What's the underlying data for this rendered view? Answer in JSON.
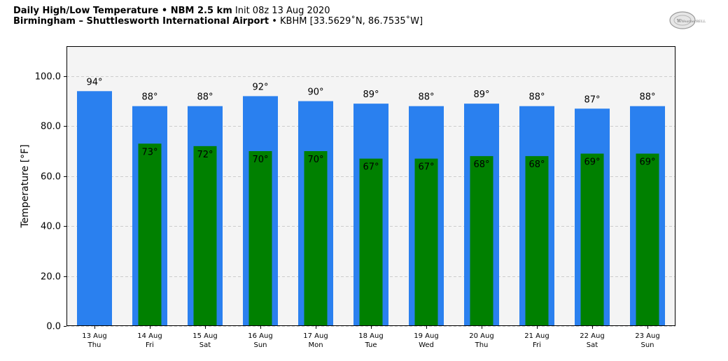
{
  "header": {
    "line1_bold": "Daily High/Low Temperature • NBM 2.5 km",
    "line1_normal": " Init 08z 13 Aug 2020",
    "line2_bold": "Birmingham – Shuttlesworth International Airport",
    "line2_normal": " • KBHM [33.5629˚N, 86.7535˚W]"
  },
  "logo": {
    "text": "WeatherBELL"
  },
  "colors": {
    "high": "#2a80ef",
    "low": "#008000",
    "plot_bg": "#f4f4f4",
    "grid": "#cccccc"
  },
  "chart_data": {
    "type": "bar",
    "ylabel": "Temperature [°F]",
    "ylim": [
      0,
      112
    ],
    "yticks": [
      "0.0",
      "20.0",
      "40.0",
      "60.0",
      "80.0",
      "100.0"
    ],
    "ytick_values": [
      0,
      20,
      40,
      60,
      80,
      100
    ],
    "grid": "horizontal dashed",
    "categories": [
      {
        "date": "13 Aug",
        "day": "Thu"
      },
      {
        "date": "14 Aug",
        "day": "Fri"
      },
      {
        "date": "15 Aug",
        "day": "Sat"
      },
      {
        "date": "16 Aug",
        "day": "Sun"
      },
      {
        "date": "17 Aug",
        "day": "Mon"
      },
      {
        "date": "18 Aug",
        "day": "Tue"
      },
      {
        "date": "19 Aug",
        "day": "Wed"
      },
      {
        "date": "20 Aug",
        "day": "Thu"
      },
      {
        "date": "21 Aug",
        "day": "Fri"
      },
      {
        "date": "22 Aug",
        "day": "Sat"
      },
      {
        "date": "23 Aug",
        "day": "Sun"
      }
    ],
    "series": [
      {
        "values": [
          94,
          88,
          88,
          92,
          90,
          89,
          88,
          89,
          88,
          87,
          88
        ],
        "labels": [
          "94°",
          "88°",
          "88°",
          "92°",
          "90°",
          "89°",
          "88°",
          "89°",
          "88°",
          "87°",
          "88°"
        ]
      },
      {
        "values": [
          null,
          73,
          72,
          70,
          70,
          67,
          67,
          68,
          68,
          69,
          69
        ],
        "labels": [
          null,
          "73°",
          "72°",
          "70°",
          "70°",
          "67°",
          "67°",
          "68°",
          "68°",
          "69°",
          "69°"
        ]
      }
    ]
  }
}
